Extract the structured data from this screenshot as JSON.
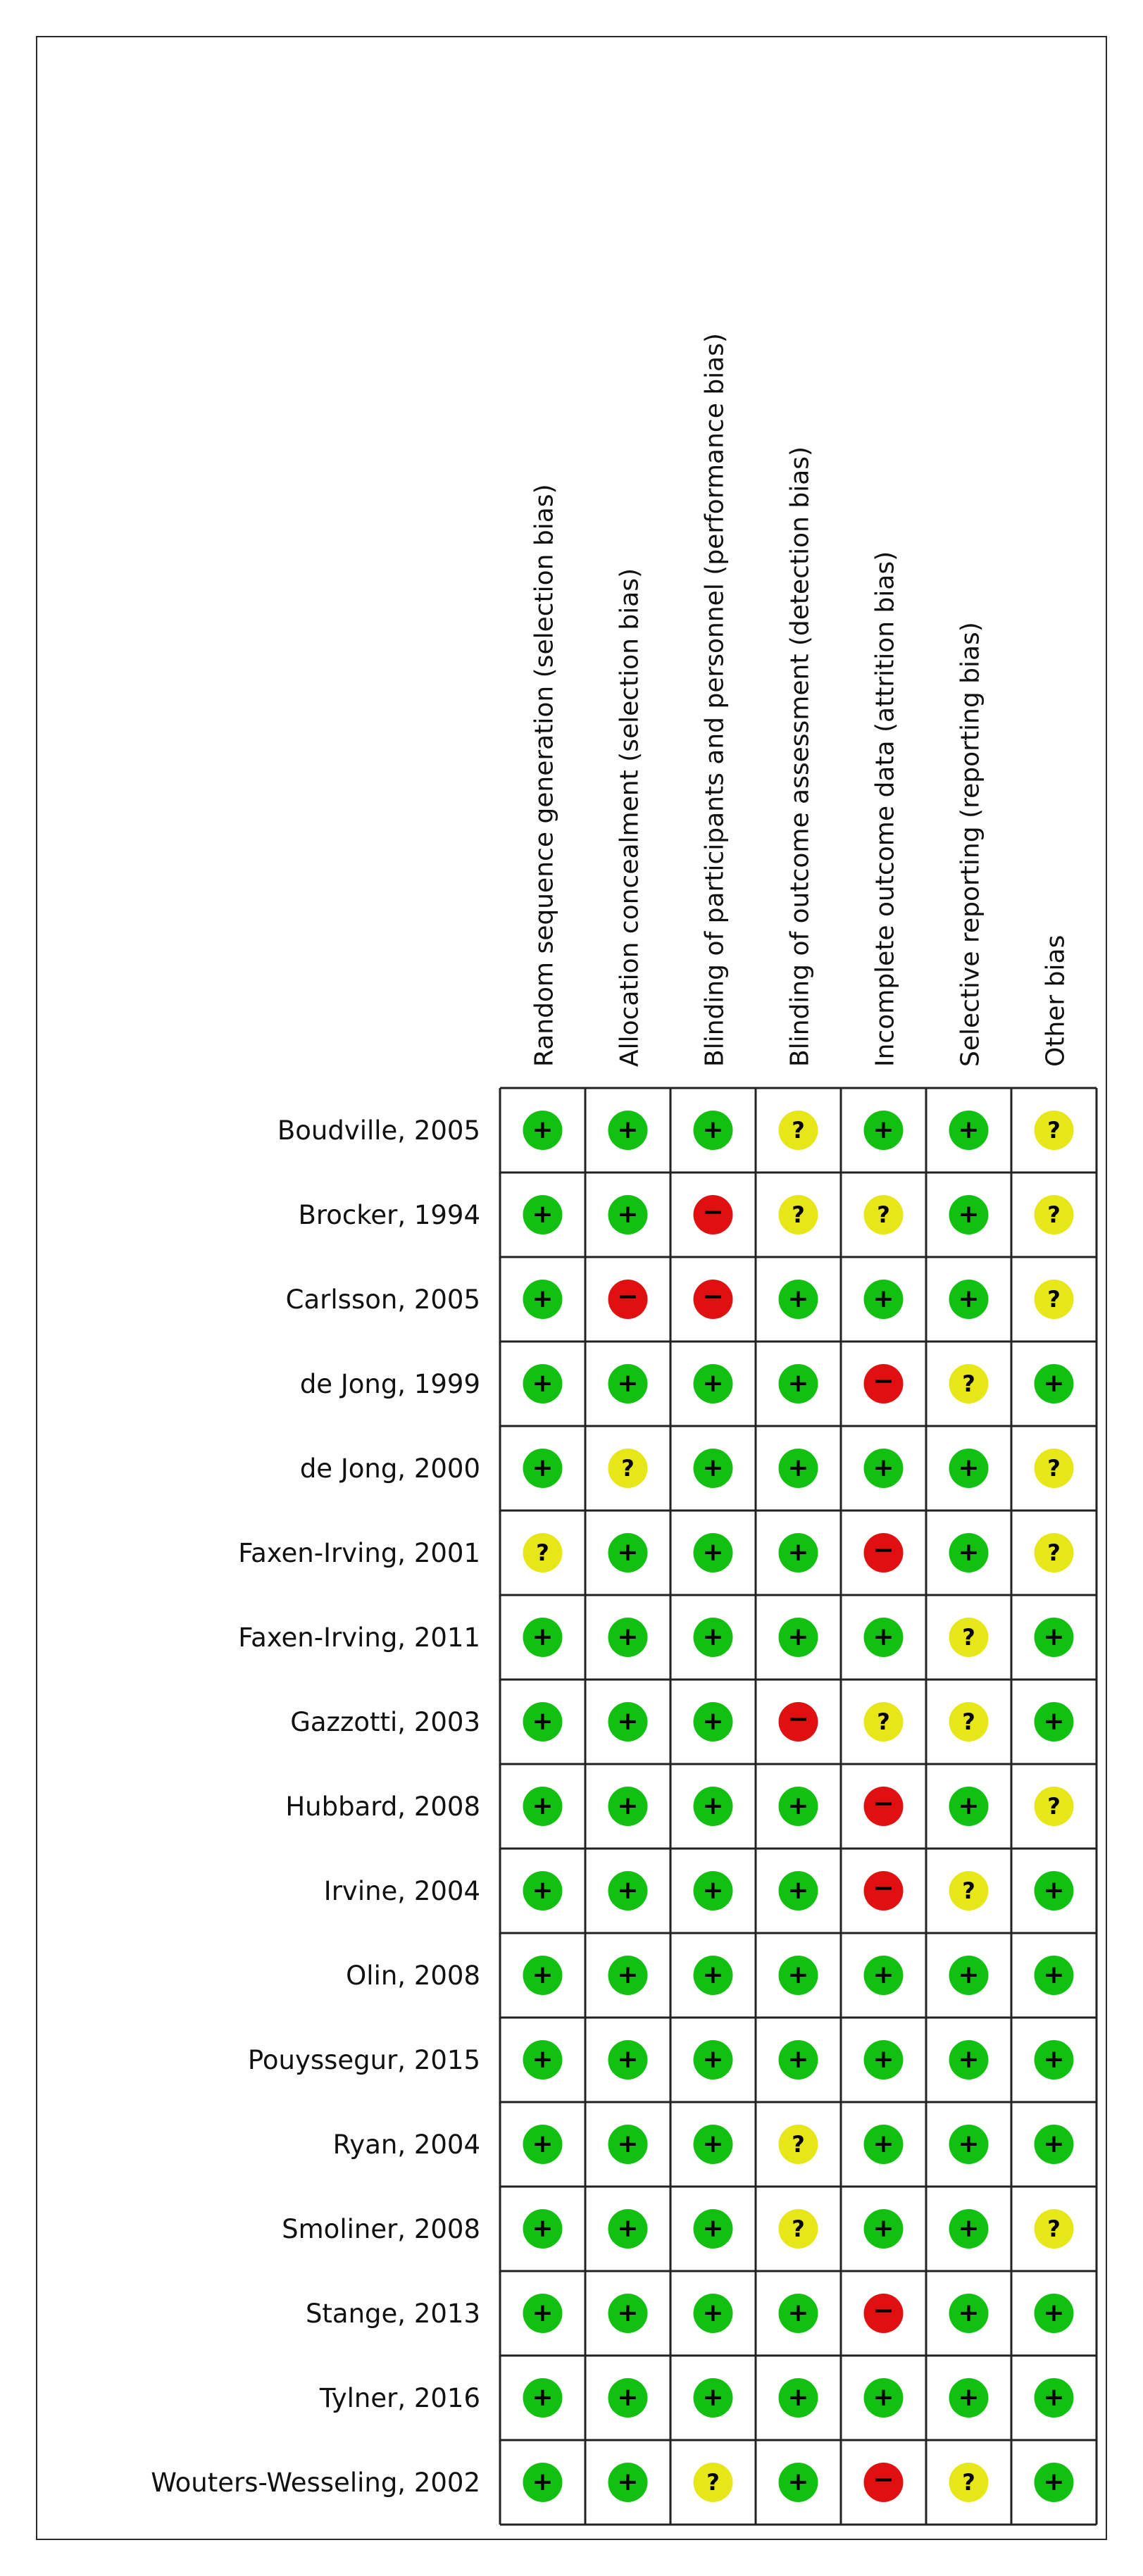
{
  "chart_data": {
    "type": "table",
    "columns": [
      "Random sequence generation (selection bias)",
      "Allocation concealment (selection bias)",
      "Blinding of participants and personnel (performance bias)",
      "Blinding of outcome assessment (detection bias)",
      "Incomplete outcome data (attrition bias)",
      "Selective reporting (reporting bias)",
      "Other bias"
    ],
    "rows": [
      {
        "study": "Boudville, 2005",
        "ratings": [
          "+",
          "+",
          "+",
          "?",
          "+",
          "+",
          "?"
        ]
      },
      {
        "study": "Brocker, 1994",
        "ratings": [
          "+",
          "+",
          "-",
          "?",
          "?",
          "+",
          "?"
        ]
      },
      {
        "study": "Carlsson, 2005",
        "ratings": [
          "+",
          "-",
          "-",
          "+",
          "+",
          "+",
          "?"
        ]
      },
      {
        "study": "de Jong, 1999",
        "ratings": [
          "+",
          "+",
          "+",
          "+",
          "-",
          "?",
          "+"
        ]
      },
      {
        "study": "de Jong, 2000",
        "ratings": [
          "+",
          "?",
          "+",
          "+",
          "+",
          "+",
          "?"
        ]
      },
      {
        "study": "Faxen-Irving, 2001",
        "ratings": [
          "?",
          "+",
          "+",
          "+",
          "-",
          "+",
          "?"
        ]
      },
      {
        "study": "Faxen-Irving, 2011",
        "ratings": [
          "+",
          "+",
          "+",
          "+",
          "+",
          "?",
          "+"
        ]
      },
      {
        "study": "Gazzotti, 2003",
        "ratings": [
          "+",
          "+",
          "+",
          "-",
          "?",
          "?",
          "+"
        ]
      },
      {
        "study": "Hubbard, 2008",
        "ratings": [
          "+",
          "+",
          "+",
          "+",
          "-",
          "+",
          "?"
        ]
      },
      {
        "study": "Irvine, 2004",
        "ratings": [
          "+",
          "+",
          "+",
          "+",
          "-",
          "?",
          "+"
        ]
      },
      {
        "study": "Olin, 2008",
        "ratings": [
          "+",
          "+",
          "+",
          "+",
          "+",
          "+",
          "+"
        ]
      },
      {
        "study": "Pouyssegur, 2015",
        "ratings": [
          "+",
          "+",
          "+",
          "+",
          "+",
          "+",
          "+"
        ]
      },
      {
        "study": "Ryan, 2004",
        "ratings": [
          "+",
          "+",
          "+",
          "?",
          "+",
          "+",
          "+"
        ]
      },
      {
        "study": "Smoliner, 2008",
        "ratings": [
          "+",
          "+",
          "+",
          "?",
          "+",
          "+",
          "?"
        ]
      },
      {
        "study": "Stange, 2013",
        "ratings": [
          "+",
          "+",
          "+",
          "+",
          "-",
          "+",
          "+"
        ]
      },
      {
        "study": "Tylner, 2016",
        "ratings": [
          "+",
          "+",
          "+",
          "+",
          "+",
          "+",
          "+"
        ]
      },
      {
        "study": "Wouters-Wesseling, 2002",
        "ratings": [
          "+",
          "+",
          "?",
          "+",
          "-",
          "?",
          "+"
        ]
      }
    ],
    "legend": {
      "+": {
        "color": "#11c011",
        "symbol": "+"
      },
      "-": {
        "color": "#e01010",
        "symbol": "−"
      },
      "?": {
        "color": "#e6e619",
        "symbol": "?"
      }
    }
  }
}
